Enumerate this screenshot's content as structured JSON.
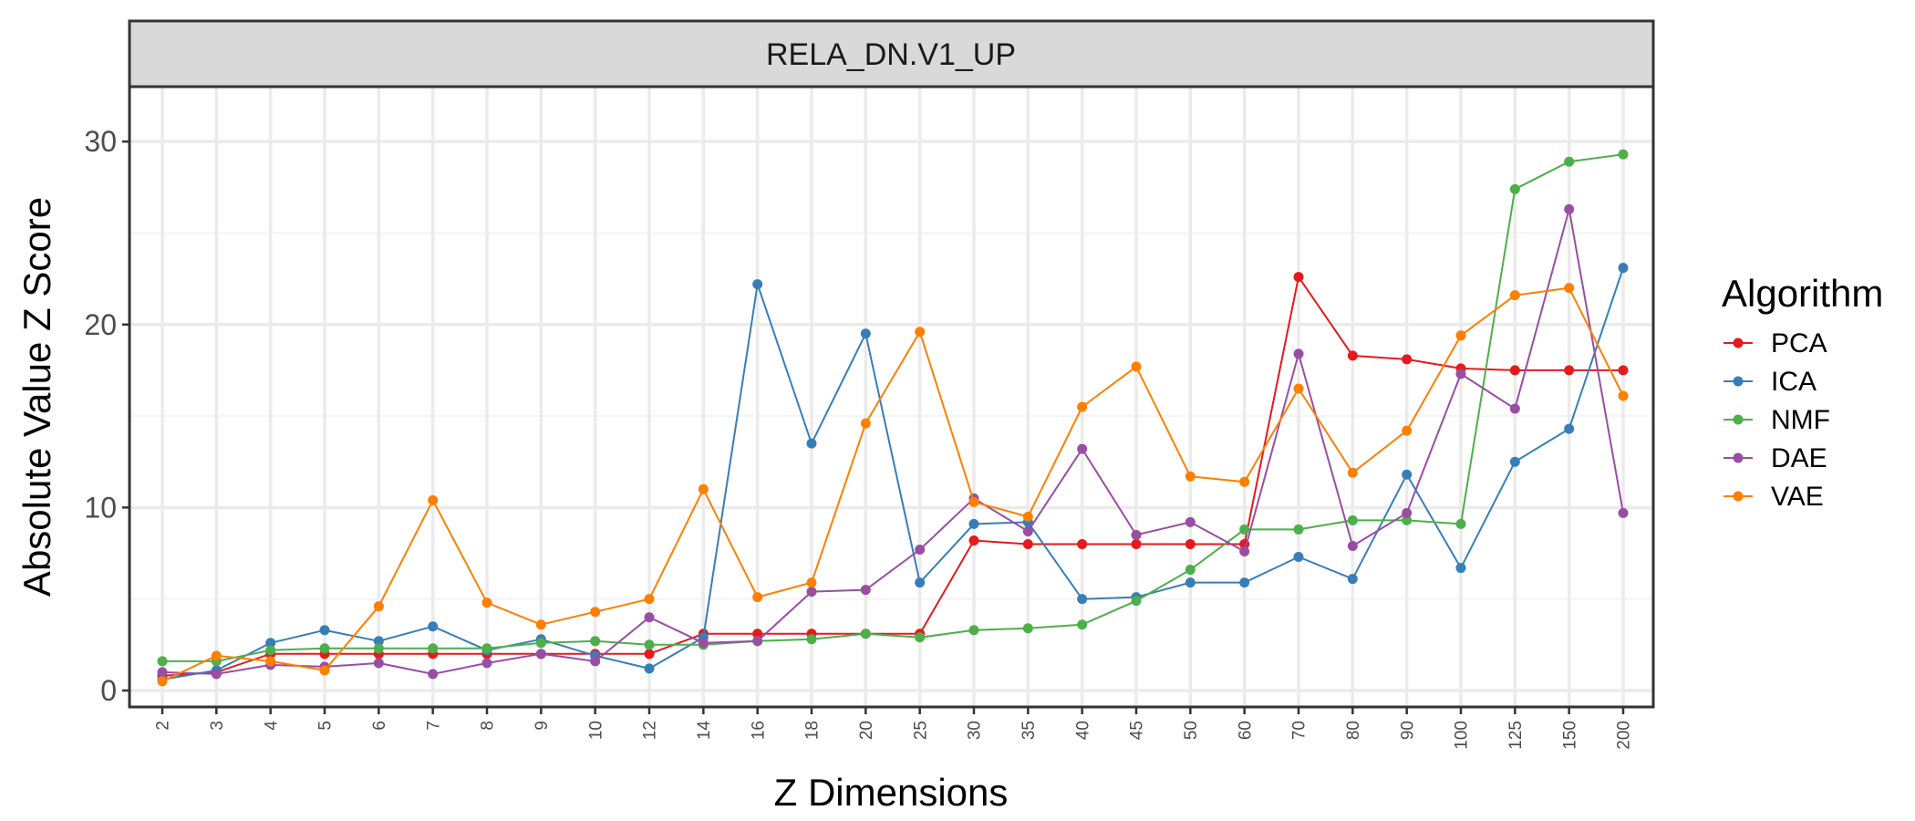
{
  "chart_data": {
    "type": "line",
    "facet_title": "RELA_DN.V1_UP",
    "xlabel": "Z Dimensions",
    "ylabel": "Absolute Value Z Score",
    "categories": [
      "2",
      "3",
      "4",
      "5",
      "6",
      "7",
      "8",
      "9",
      "10",
      "12",
      "14",
      "16",
      "18",
      "20",
      "25",
      "30",
      "35",
      "40",
      "45",
      "50",
      "60",
      "70",
      "80",
      "90",
      "100",
      "125",
      "150",
      "200"
    ],
    "ylim": [
      -0.9,
      33
    ],
    "yticks": [
      0,
      10,
      20,
      30
    ],
    "grid": true,
    "legend": {
      "title": "Algorithm",
      "position": "right"
    },
    "series": [
      {
        "name": "PCA",
        "color": "#e41a1c",
        "values": [
          0.8,
          1.0,
          2.0,
          2.0,
          2.0,
          2.0,
          2.0,
          2.0,
          2.0,
          2.0,
          3.1,
          3.1,
          3.1,
          3.1,
          3.1,
          8.2,
          8.0,
          8.0,
          8.0,
          8.0,
          8.0,
          22.6,
          18.3,
          18.1,
          17.6,
          17.5,
          17.5,
          17.5
        ]
      },
      {
        "name": "ICA",
        "color": "#377eb8",
        "values": [
          0.6,
          1.1,
          2.6,
          3.3,
          2.7,
          3.5,
          2.2,
          2.8,
          1.9,
          1.2,
          2.9,
          22.2,
          13.5,
          19.5,
          5.9,
          9.1,
          9.2,
          5.0,
          5.1,
          5.9,
          5.9,
          7.3,
          6.1,
          11.8,
          6.7,
          12.5,
          14.3,
          23.1
        ]
      },
      {
        "name": "NMF",
        "color": "#4daf4a",
        "values": [
          1.6,
          1.6,
          2.2,
          2.3,
          2.3,
          2.3,
          2.3,
          2.6,
          2.7,
          2.5,
          2.5,
          2.7,
          2.8,
          3.1,
          2.9,
          3.3,
          3.4,
          3.6,
          4.9,
          6.6,
          8.8,
          8.8,
          9.3,
          9.3,
          9.1,
          27.4,
          28.9,
          29.3
        ]
      },
      {
        "name": "DAE",
        "color": "#984ea3",
        "values": [
          1.0,
          0.9,
          1.4,
          1.3,
          1.5,
          0.9,
          1.5,
          2.0,
          1.6,
          4.0,
          2.6,
          2.7,
          5.4,
          5.5,
          7.7,
          10.5,
          8.7,
          13.2,
          8.5,
          9.2,
          7.6,
          18.4,
          7.9,
          9.7,
          17.3,
          15.4,
          26.3,
          9.7
        ]
      },
      {
        "name": "VAE",
        "color": "#ff7f00",
        "values": [
          0.5,
          1.9,
          1.6,
          1.1,
          4.6,
          10.4,
          4.8,
          3.6,
          4.3,
          5.0,
          11.0,
          5.1,
          5.9,
          14.6,
          19.6,
          10.3,
          9.5,
          15.5,
          17.7,
          11.7,
          11.4,
          16.5,
          11.9,
          14.2,
          19.4,
          21.6,
          22.0,
          16.1
        ]
      }
    ]
  }
}
